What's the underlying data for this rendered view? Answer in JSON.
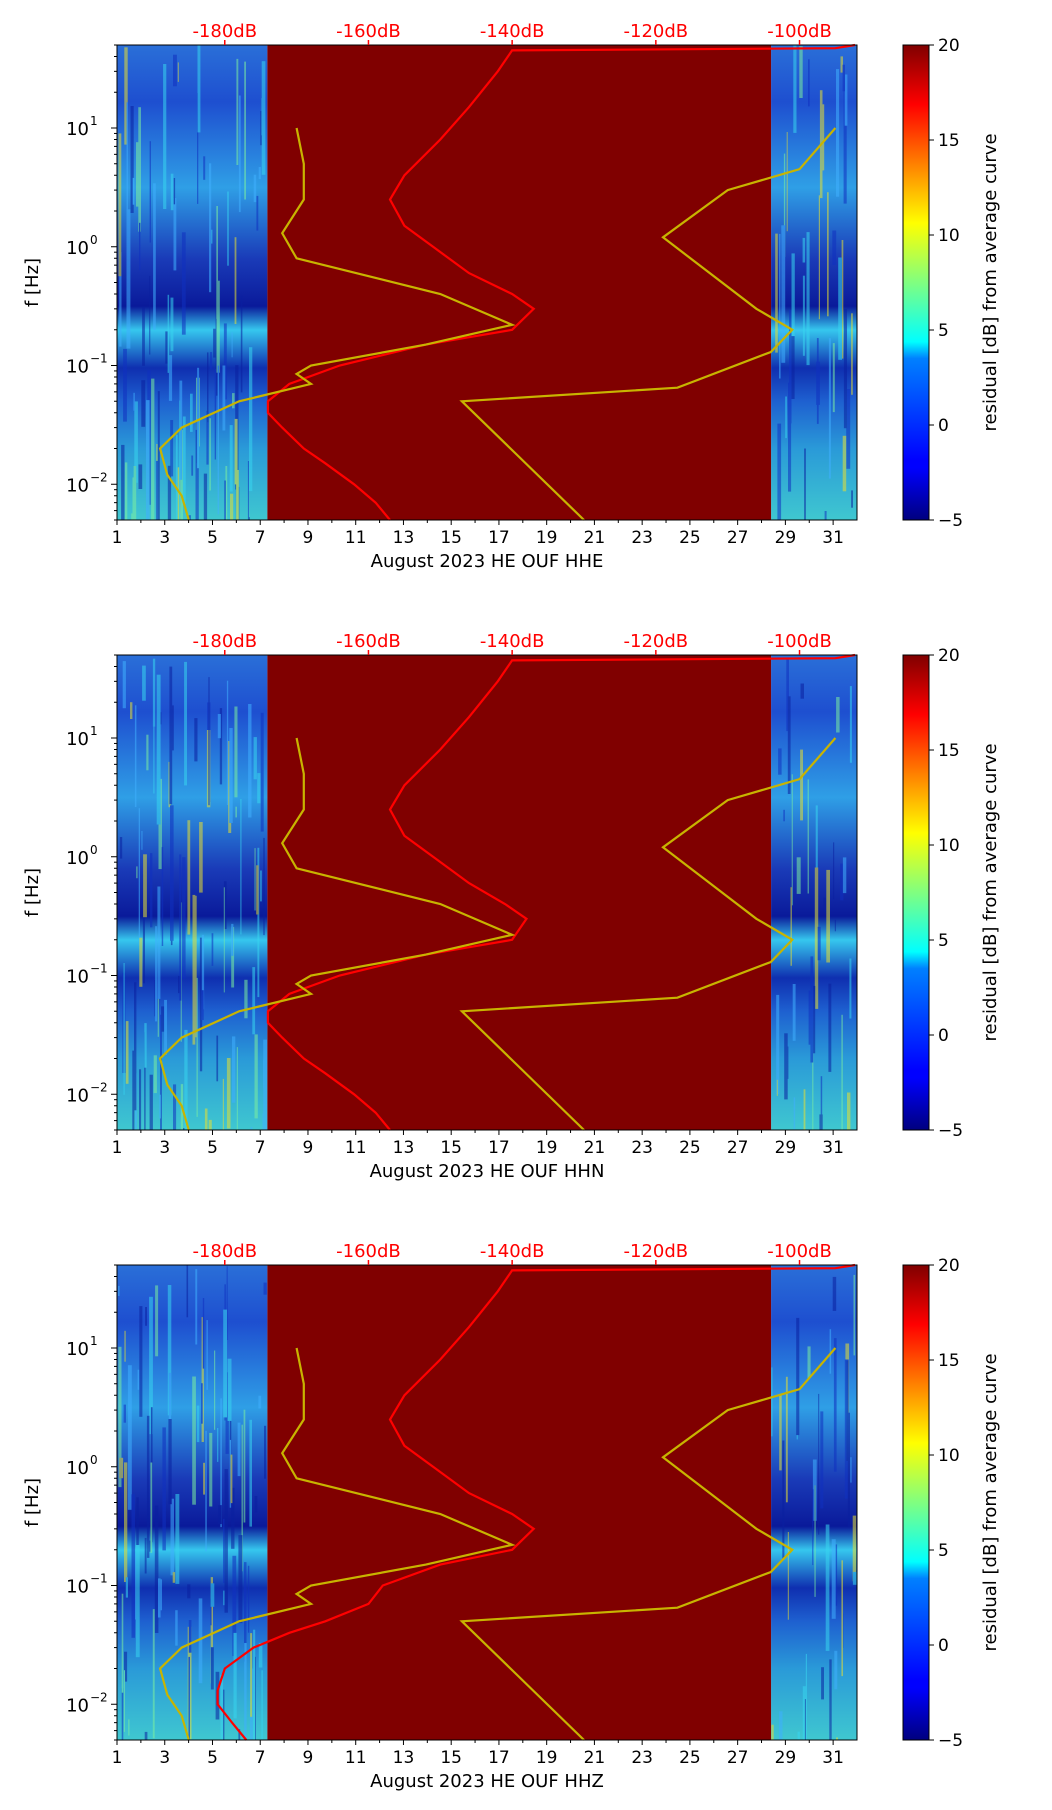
{
  "colorbar": {
    "label": "residual [dB] from average curve",
    "ticks": [
      "20",
      "15",
      "10",
      "5",
      "0",
      "−5"
    ],
    "range": [
      -5,
      20
    ],
    "colormap": "jet"
  },
  "axes_common": {
    "ylabel": "f [Hz]",
    "x_ticks": [
      "1",
      "3",
      "5",
      "7",
      "9",
      "11",
      "13",
      "15",
      "17",
      "19",
      "21",
      "23",
      "25",
      "27",
      "29",
      "31"
    ],
    "y_ticks": [
      "10",
      "10",
      "10",
      "10"
    ],
    "y_exponents": [
      "1",
      "0",
      "−1",
      "−2"
    ],
    "top_ticks": [
      "-180dB",
      "-160dB",
      "-140dB",
      "-120dB",
      "-100dB"
    ],
    "top_tick_color": "#ff0000",
    "gap_color": "#800000",
    "psd_curve_color": "#ff0000",
    "noise_model_color": "#c8b400"
  },
  "chart_data": [
    {
      "type": "heatmap",
      "xlabel": "August 2023 HE OUF  HHE",
      "ylabel": "f [Hz]",
      "xlim": [
        1,
        32
      ],
      "ylim": [
        0.005,
        50
      ],
      "yscale": "log",
      "top_axis": {
        "label_unit": "dB",
        "range": [
          -195,
          -92
        ],
        "ticks": [
          -180,
          -160,
          -140,
          -120,
          -100
        ]
      },
      "data_gap_days": [
        7.3,
        28.4
      ],
      "psd_curve": {
        "f": [
          0.005,
          0.007,
          0.01,
          0.015,
          0.02,
          0.03,
          0.04,
          0.05,
          0.07,
          0.1,
          0.15,
          0.2,
          0.3,
          0.4,
          0.6,
          1,
          1.5,
          2.5,
          4,
          8,
          15,
          30,
          45,
          47
        ],
        "db": [
          -157,
          -159,
          -162,
          -166,
          -169,
          -172,
          -174,
          -174,
          -171,
          -164,
          -152,
          -140,
          -137,
          -140,
          -146,
          -151,
          -155,
          -157,
          -155,
          -150,
          -146,
          -142,
          -140,
          -95
        ]
      }
    },
    {
      "type": "heatmap",
      "xlabel": "August 2023 HE OUF  HHN",
      "ylabel": "f [Hz]",
      "xlim": [
        1,
        32
      ],
      "ylim": [
        0.005,
        50
      ],
      "yscale": "log",
      "top_axis": {
        "label_unit": "dB",
        "range": [
          -195,
          -92
        ],
        "ticks": [
          -180,
          -160,
          -140,
          -120,
          -100
        ]
      },
      "data_gap_days": [
        7.3,
        28.4
      ],
      "psd_curve": {
        "f": [
          0.005,
          0.007,
          0.01,
          0.015,
          0.02,
          0.03,
          0.04,
          0.05,
          0.07,
          0.1,
          0.15,
          0.2,
          0.3,
          0.4,
          0.6,
          1,
          1.5,
          2.5,
          4,
          8,
          15,
          30,
          45,
          47
        ],
        "db": [
          -157,
          -159,
          -162,
          -166,
          -169,
          -172,
          -174,
          -174,
          -171,
          -164,
          -152,
          -140,
          -138,
          -141,
          -146,
          -151,
          -155,
          -157,
          -155,
          -150,
          -146,
          -142,
          -140,
          -95
        ]
      }
    },
    {
      "type": "heatmap",
      "xlabel": "August 2023 HE OUF  HHZ",
      "ylabel": "f [Hz]",
      "xlim": [
        1,
        32
      ],
      "ylim": [
        0.005,
        50
      ],
      "yscale": "log",
      "top_axis": {
        "label_unit": "dB",
        "range": [
          -195,
          -92
        ],
        "ticks": [
          -180,
          -160,
          -140,
          -120,
          -100
        ]
      },
      "data_gap_days": [
        7.3,
        28.4
      ],
      "psd_curve": {
        "f": [
          0.005,
          0.007,
          0.01,
          0.013,
          0.02,
          0.03,
          0.04,
          0.05,
          0.07,
          0.1,
          0.15,
          0.2,
          0.3,
          0.4,
          0.6,
          1,
          1.5,
          2.5,
          4,
          8,
          15,
          30,
          45,
          47
        ],
        "db": [
          -177,
          -179,
          -181,
          -181,
          -180,
          -176,
          -171,
          -166,
          -160,
          -158,
          -150,
          -140,
          -137,
          -140,
          -146,
          -151,
          -155,
          -157,
          -155,
          -150,
          -146,
          -142,
          -140,
          -95
        ]
      }
    }
  ],
  "noise_models": {
    "low": {
      "f": [
        0.005,
        0.008,
        0.012,
        0.02,
        0.03,
        0.05,
        0.07,
        0.085,
        0.1,
        0.15,
        0.22,
        0.4,
        0.8,
        1.3,
        2.5,
        5,
        10
      ],
      "db": [
        -185,
        -186,
        -188,
        -189,
        -186,
        -178,
        -168,
        -170,
        -168,
        -152,
        -140,
        -150,
        -170,
        -172,
        -169,
        -169,
        -170
      ]
    },
    "high": {
      "f": [
        0.005,
        0.05,
        0.065,
        0.13,
        0.2,
        0.3,
        1.2,
        3,
        4.5,
        10
      ],
      "db": [
        -130,
        -147,
        -117,
        -104,
        -101,
        -106,
        -119,
        -110,
        -100,
        -95
      ]
    }
  }
}
